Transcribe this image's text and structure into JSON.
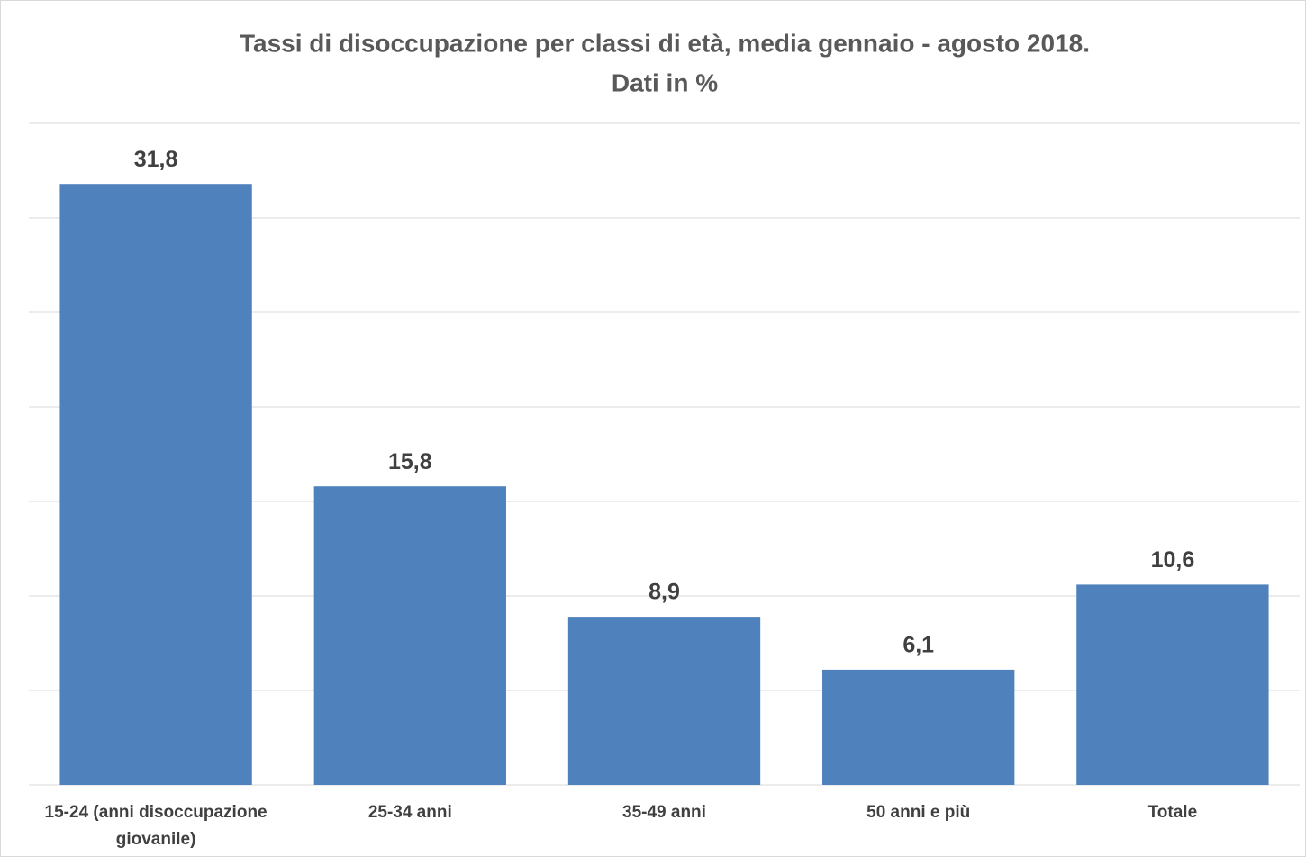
{
  "chart_data": {
    "type": "bar",
    "title": "Tassi di disoccupazione per classi di età, media gennaio - agosto 2018.",
    "subtitle": "Dati in %",
    "categories": [
      "15-24 (anni disoccupazione giovanile)",
      "25-34 anni",
      "35-49 anni",
      "50 anni e più",
      "Totale"
    ],
    "values": [
      31.8,
      15.8,
      8.9,
      6.1,
      10.6
    ],
    "value_labels": [
      "31,8",
      "15,8",
      "8,9",
      "6,1",
      "10,6"
    ],
    "color": "#4f81bd",
    "ylim": [
      0,
      35
    ],
    "yticks": [
      0,
      5,
      10,
      15,
      20,
      25,
      30,
      35
    ],
    "grid": true
  }
}
